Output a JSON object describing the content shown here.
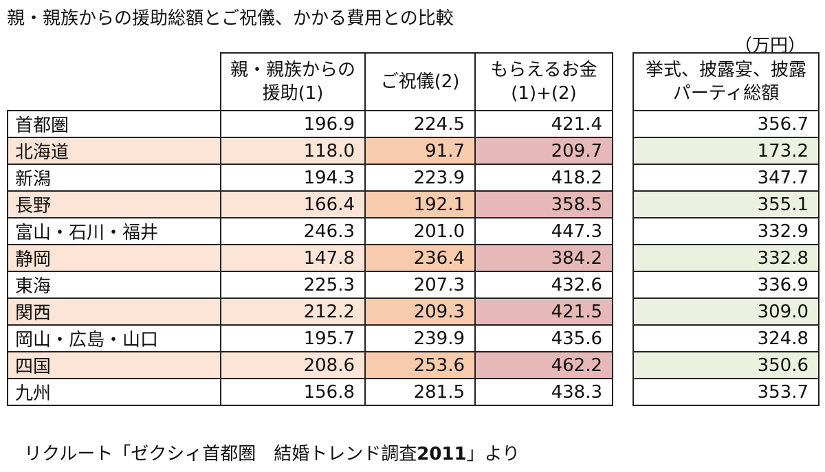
{
  "title": "親・親族からの援助総額とご祝儀、かかる費用との比較",
  "unit": "（万円）",
  "source_prefix": "リクルート「ゼクシィ首都圏　結婚トレンド調査",
  "source_year": "2011",
  "source_suffix": "」より",
  "headers": {
    "c1": "親・親族からの援助(1)",
    "c2": "ご祝儀(2)",
    "c3": "もらえるお金(1)+(2)",
    "c4": "挙式、披露宴、披露パーティ総額"
  },
  "colors": {
    "highlight_region": "#fce4d6",
    "highlight_gift": "#f8cbad",
    "highlight_total": "#e6b8b7",
    "highlight_cost": "#ebf1de"
  },
  "chart_data": {
    "type": "table",
    "title": "親・親族からの援助総額とご祝儀、かかる費用との比較",
    "columns": [
      "親・親族からの援助(1)",
      "ご祝儀(2)",
      "もらえるお金(1)+(2)",
      "挙式、披露宴、披露パーティ総額"
    ],
    "rows": [
      {
        "region": "首都圏",
        "values": [
          "196.9",
          "224.5",
          "421.4",
          "356.7"
        ],
        "highlight": false
      },
      {
        "region": "北海道",
        "values": [
          "118.0",
          "91.7",
          "209.7",
          "173.2"
        ],
        "highlight": true
      },
      {
        "region": "新潟",
        "values": [
          "194.3",
          "223.9",
          "418.2",
          "347.7"
        ],
        "highlight": false
      },
      {
        "region": "長野",
        "values": [
          "166.4",
          "192.1",
          "358.5",
          "355.1"
        ],
        "highlight": true
      },
      {
        "region": "富山・石川・福井",
        "values": [
          "246.3",
          "201.0",
          "447.3",
          "332.9"
        ],
        "highlight": false
      },
      {
        "region": "静岡",
        "values": [
          "147.8",
          "236.4",
          "384.2",
          "332.8"
        ],
        "highlight": true
      },
      {
        "region": "東海",
        "values": [
          "225.3",
          "207.3",
          "432.6",
          "336.9"
        ],
        "highlight": false
      },
      {
        "region": "関西",
        "values": [
          "212.2",
          "209.3",
          "421.5",
          "309.0"
        ],
        "highlight": true
      },
      {
        "region": "岡山・広島・山口",
        "values": [
          "195.7",
          "239.9",
          "435.6",
          "324.8"
        ],
        "highlight": false
      },
      {
        "region": "四国",
        "values": [
          "208.6",
          "253.6",
          "462.2",
          "350.6"
        ],
        "highlight": true
      },
      {
        "region": "九州",
        "values": [
          "156.8",
          "281.5",
          "438.3",
          "353.7"
        ],
        "highlight": false
      }
    ]
  }
}
